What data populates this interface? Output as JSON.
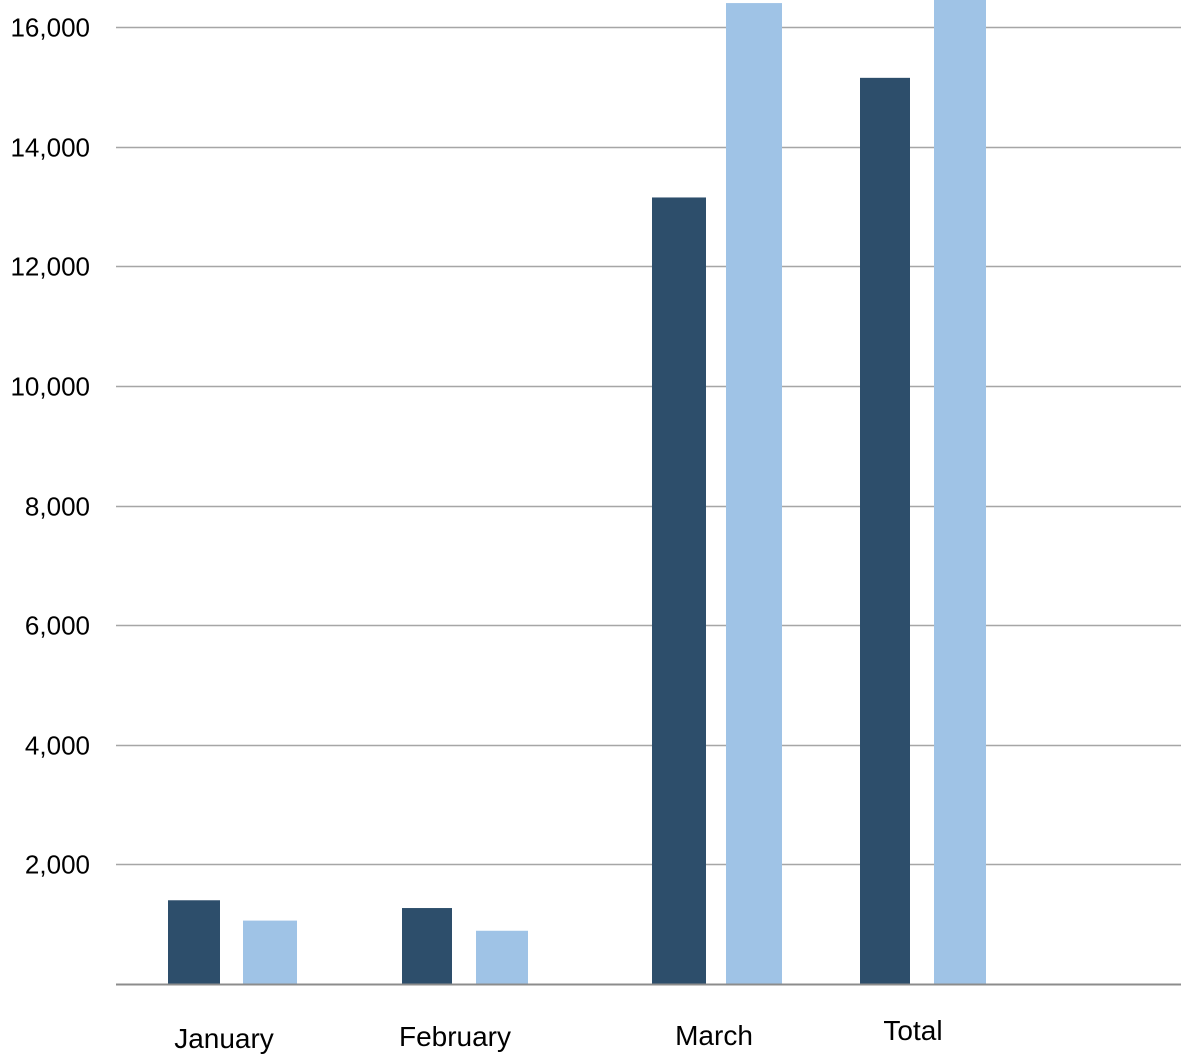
{
  "chart_data": {
    "type": "bar",
    "categories": [
      "January",
      "February",
      "March",
      "Total"
    ],
    "series": [
      {
        "values": [
          1400,
          1270,
          13150,
          15150
        ],
        "color": "#2d4e6b"
      },
      {
        "values": [
          1060,
          890,
          16400,
          16600
        ],
        "color": "#9fc3e6"
      }
    ],
    "y_ticks": [
      "2,000",
      "4,000",
      "6,000",
      "8,000",
      "10,000",
      "12,000",
      "14,000",
      "16,000"
    ],
    "y_tick_values": [
      2000,
      4000,
      6000,
      8000,
      10000,
      12000,
      14000,
      16000
    ],
    "ylim": [
      0,
      16000
    ],
    "xlabel": "",
    "ylabel": "",
    "title": "",
    "grid": true,
    "legend": "none",
    "gridline_color": "#a6a6a6",
    "axis_color": "#8c8c8c"
  }
}
